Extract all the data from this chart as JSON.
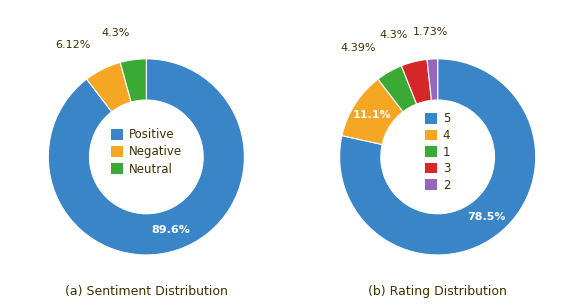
{
  "chart1": {
    "title": "(a) Sentiment Distribution",
    "labels": [
      "Positive",
      "Negative",
      "Neutral"
    ],
    "values": [
      89.6,
      6.12,
      4.3
    ],
    "colors": [
      "#3a85c8",
      "#f5a623",
      "#3aaa35"
    ],
    "autopct_labels": [
      "89.6%",
      "6.12%",
      "4.3%"
    ],
    "legend_labels": [
      "Positive",
      "Negative",
      "Neutral"
    ],
    "label_inside_threshold": 10
  },
  "chart2": {
    "title": "(b) Rating Distribution",
    "labels": [
      "5",
      "4",
      "1",
      "3",
      "2"
    ],
    "values": [
      78.5,
      11.1,
      4.39,
      4.3,
      1.73
    ],
    "colors": [
      "#3a85c8",
      "#f5a623",
      "#3aaa35",
      "#d62728",
      "#9467bd"
    ],
    "autopct_labels": [
      "78.5%",
      "11.1%",
      "4.39%",
      "4.3%",
      "1.73%"
    ],
    "legend_labels": [
      "5",
      "4",
      "1",
      "3",
      "2"
    ],
    "label_inside_threshold": 10
  },
  "background_color": "#ffffff",
  "wedge_edge_color": "white",
  "donut_width": 0.42,
  "label_color_dark": "#3d3000",
  "label_fontsize": 8.0,
  "legend_fontsize": 8.5,
  "caption_fontsize": 9.0
}
